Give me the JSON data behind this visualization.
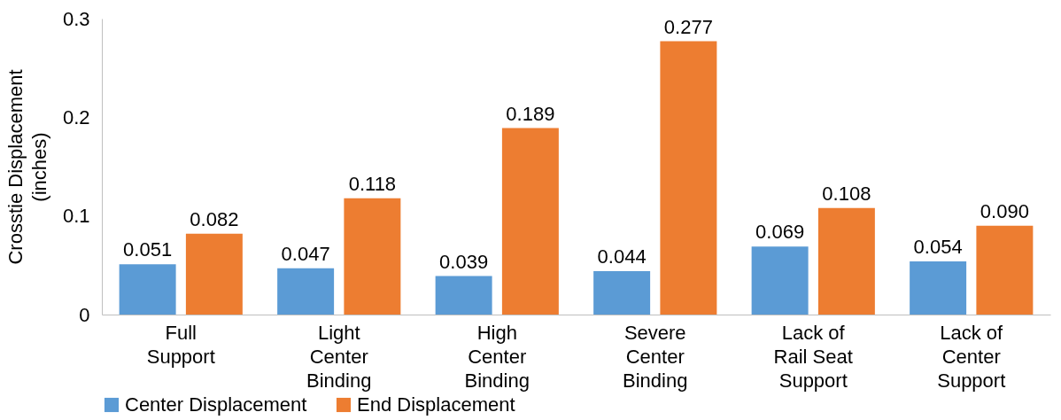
{
  "chart_data": {
    "type": "bar",
    "ylabel": "Crosstie Displacement (inches)",
    "categories": [
      "Full Support",
      "Light Center Binding",
      "High Center Binding",
      "Severe Center Binding",
      "Lack of Rail Seat Support",
      "Lack of Center Support"
    ],
    "series": [
      {
        "name": "Center Displacement",
        "color": "#5b9bd5",
        "values": [
          0.051,
          0.047,
          0.039,
          0.044,
          0.069,
          0.054
        ],
        "value_labels": [
          "0.051",
          "0.047",
          "0.039",
          "0.044",
          "0.069",
          "0.054"
        ]
      },
      {
        "name": "End Displacement",
        "color": "#ed7d31",
        "values": [
          0.082,
          0.118,
          0.189,
          0.277,
          0.108,
          0.09
        ],
        "value_labels": [
          "0.082",
          "0.118",
          "0.189",
          "0.277",
          "0.108",
          "0.090"
        ]
      }
    ],
    "ylim": [
      0,
      0.3
    ],
    "yticks": [
      0,
      0.1,
      0.2,
      0.3
    ],
    "grid": false,
    "legend": "bottom"
  }
}
